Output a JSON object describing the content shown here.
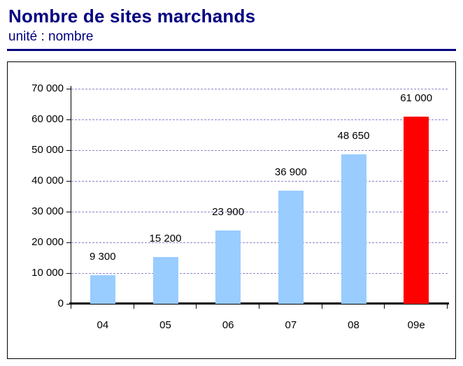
{
  "header": {
    "title": "Nombre de sites marchands",
    "subtitle": "unité : nombre"
  },
  "colors": {
    "title_navy": "#000080",
    "bar_blue": "#99CCFF",
    "bar_red": "#FF0000",
    "gridline": "#8888CC"
  },
  "chart_data": {
    "type": "bar",
    "title": "Nombre de sites marchands",
    "subtitle": "unité : nombre",
    "categories": [
      "04",
      "05",
      "06",
      "07",
      "08",
      "09e"
    ],
    "values": [
      9300,
      15200,
      23900,
      36900,
      48650,
      61000
    ],
    "value_labels": [
      "9 300",
      "15 200",
      "23 900",
      "36 900",
      "48 650",
      "61 000"
    ],
    "bar_colors": [
      "#99CCFF",
      "#99CCFF",
      "#99CCFF",
      "#99CCFF",
      "#99CCFF",
      "#FF0000"
    ],
    "xlabel": "",
    "ylabel": "",
    "ylim": [
      0,
      70000
    ],
    "ytick_values": [
      0,
      10000,
      20000,
      30000,
      40000,
      50000,
      60000,
      70000
    ],
    "ytick_labels": [
      "0",
      "10 000",
      "20 000",
      "30 000",
      "40 000",
      "50 000",
      "60 000",
      "70 000"
    ],
    "grid": "horizontal-dashed",
    "legend": "none"
  }
}
